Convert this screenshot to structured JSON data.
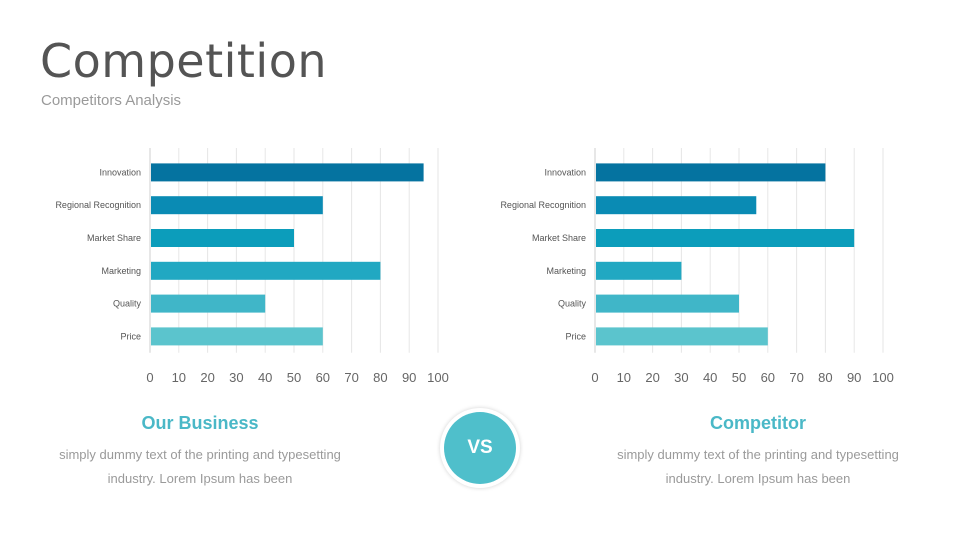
{
  "header": {
    "title": "Competition",
    "subtitle": "Competitors Analysis"
  },
  "chart_data": [
    {
      "type": "bar",
      "orientation": "horizontal",
      "categories": [
        "Innovation",
        "Regional Recognition",
        "Market Share",
        "Marketing",
        "Quality",
        "Price"
      ],
      "values": [
        95,
        60,
        50,
        80,
        40,
        60
      ],
      "xlim": [
        0,
        100
      ],
      "xticks": [
        0,
        10,
        20,
        30,
        40,
        50,
        60,
        70,
        80,
        90,
        100
      ],
      "grid": true,
      "bar_colors": [
        "#0573a0",
        "#0a8bb4",
        "#0c9dbb",
        "#21a8c2",
        "#40b6c8",
        "#5bc4cd"
      ]
    },
    {
      "type": "bar",
      "orientation": "horizontal",
      "categories": [
        "Innovation",
        "Regional Recognition",
        "Market Share",
        "Marketing",
        "Quality",
        "Price"
      ],
      "values": [
        80,
        56,
        90,
        30,
        50,
        60
      ],
      "xlim": [
        0,
        100
      ],
      "xticks": [
        0,
        10,
        20,
        30,
        40,
        50,
        60,
        70,
        80,
        90,
        100
      ],
      "grid": true,
      "bar_colors": [
        "#0573a0",
        "#0a8bb4",
        "#0c9dbb",
        "#21a8c2",
        "#40b6c8",
        "#5bc4cd"
      ]
    }
  ],
  "panels": {
    "left": {
      "title": "Our Business",
      "text_line1": "simply dummy text of the printing and typesetting",
      "text_line2": "industry. Lorem Ipsum has been"
    },
    "right": {
      "title": "Competitor",
      "text_line1": "simply dummy text of the printing and typesetting",
      "text_line2": "industry. Lorem Ipsum has been"
    }
  },
  "vs_badge": {
    "label": "VS",
    "color": "#4fbfcb"
  },
  "colors": {
    "accent": "#4ab8c7",
    "title": "#545454",
    "muted": "#9a9a9a"
  }
}
